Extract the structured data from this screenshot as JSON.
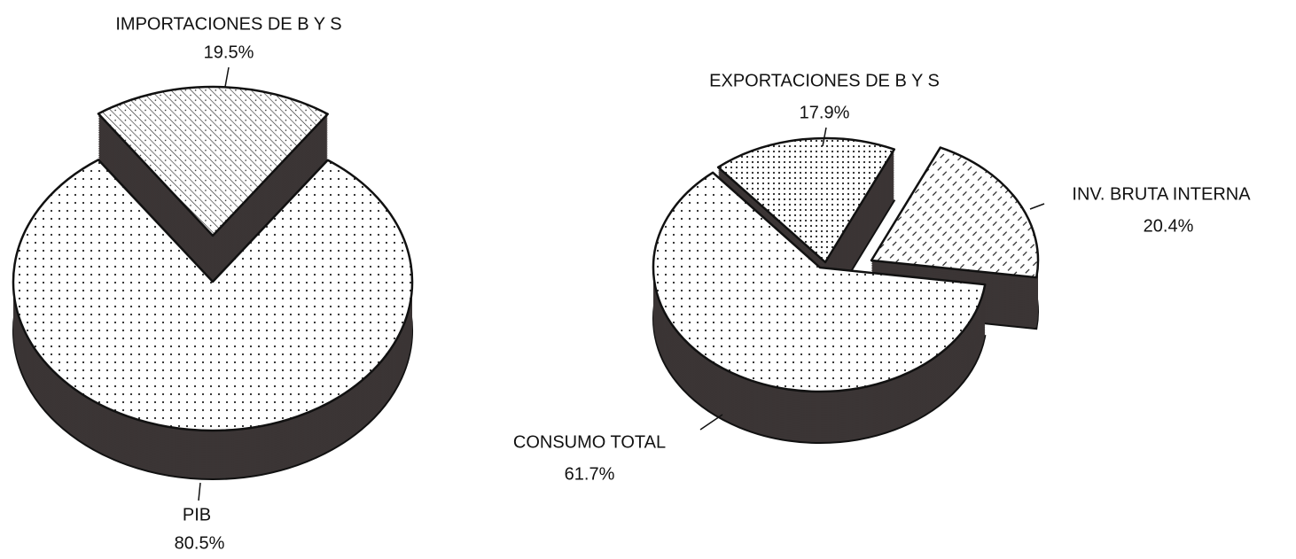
{
  "chart_data": [
    {
      "type": "pie",
      "categories": [
        "IMPORTACIONES DE B Y S",
        "PIB"
      ],
      "values": [
        19.5,
        80.5
      ],
      "value_labels": [
        "19.5%",
        "80.5%"
      ]
    },
    {
      "type": "pie",
      "categories": [
        "EXPORTACIONES DE B Y S",
        "INV. BRUTA INTERNA",
        "CONSUMO TOTAL"
      ],
      "values": [
        17.9,
        20.4,
        61.7
      ],
      "value_labels": [
        "17.9%",
        "20.4%",
        "61.7%"
      ]
    }
  ]
}
